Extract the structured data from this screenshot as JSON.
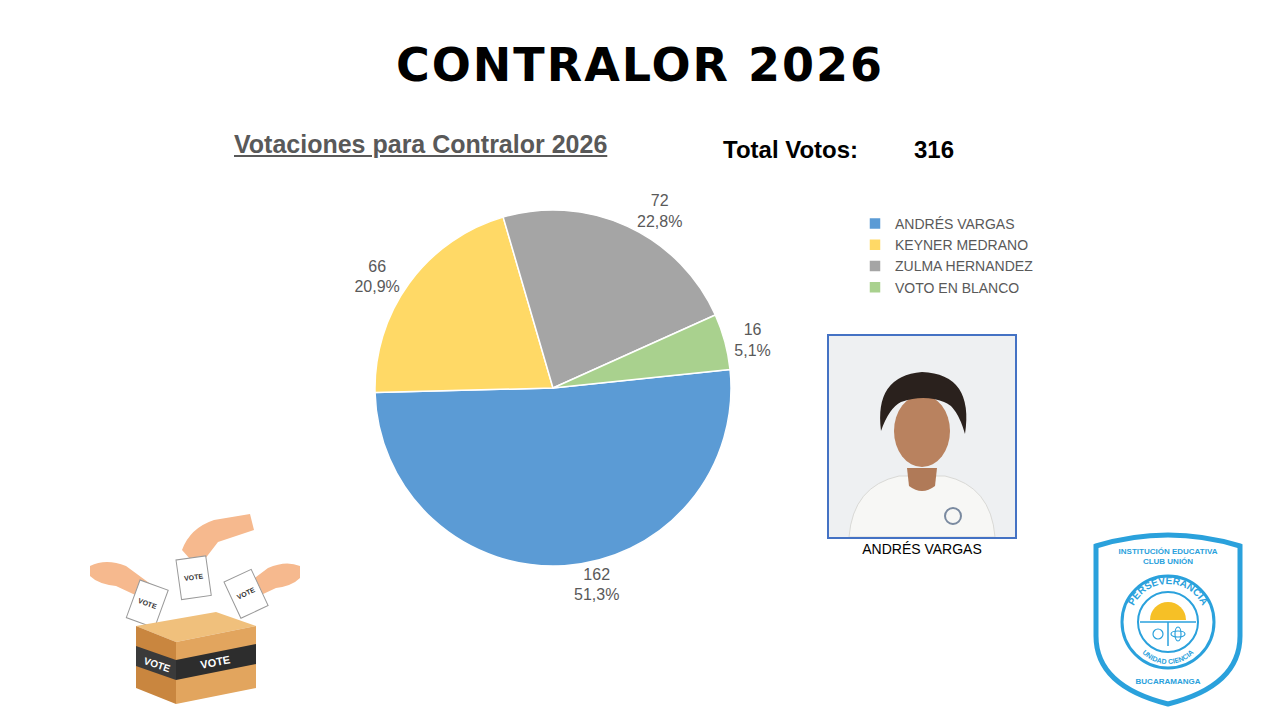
{
  "header": {
    "title": "CONTRALOR 2026"
  },
  "chart_data": {
    "type": "pie",
    "title": "Votaciones para Contralor 2026",
    "total_label": "Total Votos:",
    "total": 316,
    "categories": [
      "ANDRÉS VARGAS",
      "KEYNER MEDRANO",
      "ZULMA HERNANDEZ",
      "VOTO EN BLANCO"
    ],
    "values": [
      162,
      66,
      72,
      16
    ],
    "value_labels": [
      "162\n51,3%",
      "66\n20,9%",
      "72\n22,8%",
      "16\n5,1%"
    ],
    "colors": [
      "#5b9bd5",
      "#ffd966",
      "#a5a5a5",
      "#a9d18e"
    ],
    "data_labels": true,
    "legend": "right"
  },
  "photo": {
    "caption": "ANDRÉS VARGAS"
  },
  "logo": {
    "top_lines": [
      "INSTITUCIÓN EDUCATIVA",
      "CLUB UNIÓN"
    ],
    "ring_top": "PERSEVERANCIA",
    "ring_bottom": "UNIDAD CIENCIA",
    "bottom": "BUCARAMANGA"
  },
  "icon": {
    "ballots": [
      "VOTE",
      "VOTE",
      "VOTE"
    ],
    "box": [
      "VOTE",
      "VOTE"
    ]
  }
}
